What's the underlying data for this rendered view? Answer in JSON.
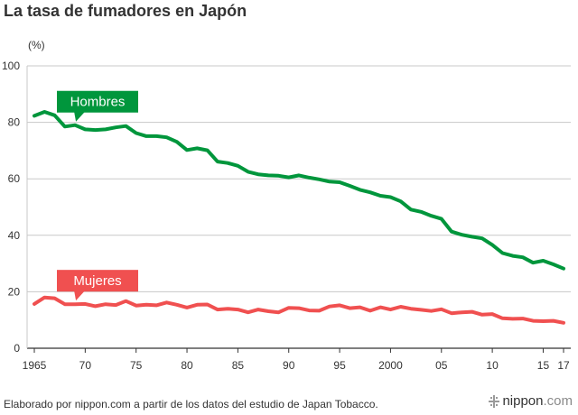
{
  "title": "La tasa de fumadores en Japón",
  "footer": {
    "source": "Elaborado por nippon.com a partir de los datos del estudio de Japan Tobacco.",
    "brand_name": "nippon",
    "brand_dot": ".",
    "brand_tld": "com"
  },
  "colors": {
    "hombres": "#00963c",
    "mujeres": "#f05050",
    "grid": "#c8c8c8",
    "axis": "#333333"
  },
  "chart_data": {
    "type": "line",
    "title": "La tasa de fumadores en Japón",
    "xlabel": "",
    "ylabel": "(%)",
    "ylim": [
      0,
      100
    ],
    "xlim": [
      1965,
      2017
    ],
    "grid": true,
    "yticks": [
      0,
      20,
      40,
      60,
      80,
      100
    ],
    "xticks": [
      {
        "value": 1965,
        "label": "1965"
      },
      {
        "value": 1970,
        "label": "70"
      },
      {
        "value": 1975,
        "label": "75"
      },
      {
        "value": 1980,
        "label": "80"
      },
      {
        "value": 1985,
        "label": "85"
      },
      {
        "value": 1990,
        "label": "90"
      },
      {
        "value": 1995,
        "label": "95"
      },
      {
        "value": 2000,
        "label": "2000"
      },
      {
        "value": 2005,
        "label": "05"
      },
      {
        "value": 2010,
        "label": "10"
      },
      {
        "value": 2015,
        "label": "15"
      },
      {
        "value": 2017,
        "label": "17"
      }
    ],
    "x": [
      1965,
      1966,
      1967,
      1968,
      1969,
      1970,
      1971,
      1972,
      1973,
      1974,
      1975,
      1976,
      1977,
      1978,
      1979,
      1980,
      1981,
      1982,
      1983,
      1984,
      1985,
      1986,
      1987,
      1988,
      1989,
      1990,
      1991,
      1992,
      1993,
      1994,
      1995,
      1996,
      1997,
      1998,
      1999,
      2000,
      2001,
      2002,
      2003,
      2004,
      2005,
      2006,
      2007,
      2008,
      2009,
      2010,
      2011,
      2012,
      2013,
      2014,
      2015,
      2016,
      2017
    ],
    "series": [
      {
        "name": "Hombres",
        "values": [
          82.3,
          83.7,
          82.5,
          78.5,
          79.0,
          77.5,
          77.3,
          77.5,
          78.2,
          78.7,
          76.2,
          75.1,
          75.1,
          74.7,
          73.1,
          70.2,
          70.8,
          70.1,
          66.1,
          65.6,
          64.6,
          62.5,
          61.6,
          61.2,
          61.1,
          60.5,
          61.2,
          60.4,
          59.8,
          59.0,
          58.8,
          57.5,
          56.1,
          55.2,
          54.0,
          53.5,
          52.0,
          49.1,
          48.3,
          46.9,
          45.8,
          41.3,
          40.2,
          39.5,
          38.9,
          36.6,
          33.7,
          32.7,
          32.2,
          30.3,
          31.0,
          29.7,
          28.2
        ]
      },
      {
        "name": "Mujeres",
        "values": [
          15.7,
          18.0,
          17.7,
          15.6,
          15.6,
          15.7,
          14.9,
          15.6,
          15.3,
          16.7,
          15.1,
          15.4,
          15.2,
          16.2,
          15.4,
          14.4,
          15.4,
          15.5,
          13.7,
          14.0,
          13.7,
          12.7,
          13.7,
          13.1,
          12.7,
          14.3,
          14.2,
          13.4,
          13.3,
          14.8,
          15.2,
          14.2,
          14.5,
          13.3,
          14.5,
          13.7,
          14.7,
          14.0,
          13.6,
          13.2,
          13.8,
          12.4,
          12.7,
          12.9,
          11.9,
          12.1,
          10.6,
          10.4,
          10.5,
          9.7,
          9.6,
          9.7,
          9.0
        ]
      }
    ],
    "series_label_points": [
      {
        "series": "Hombres",
        "label": "Hombres",
        "x": 1969,
        "y": 79.0
      },
      {
        "series": "Mujeres",
        "label": "Mujeres",
        "x": 1969,
        "y": 15.6
      }
    ]
  }
}
